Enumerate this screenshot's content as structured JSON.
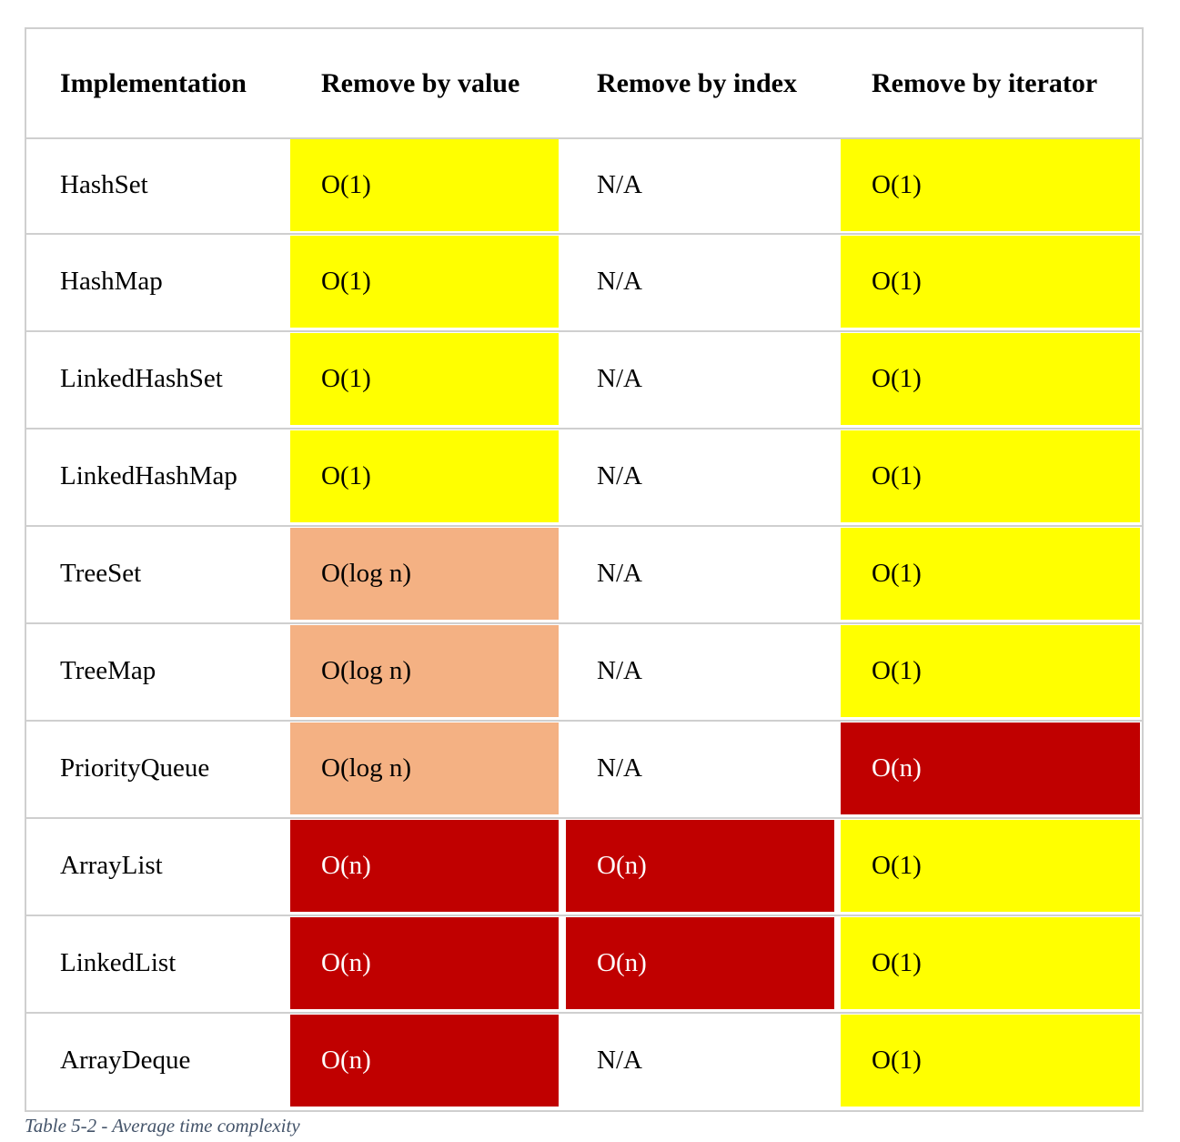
{
  "table": {
    "headers": [
      "Implementation",
      "Remove by value",
      "Remove by index",
      "Remove by iterator"
    ],
    "rows": [
      {
        "name": "HashSet",
        "value": "O(1)",
        "index": "N/A",
        "iterator": "O(1)"
      },
      {
        "name": "HashMap",
        "value": "O(1)",
        "index": "N/A",
        "iterator": "O(1)"
      },
      {
        "name": "LinkedHashSet",
        "value": "O(1)",
        "index": "N/A",
        "iterator": "O(1)"
      },
      {
        "name": "LinkedHashMap",
        "value": "O(1)",
        "index": "N/A",
        "iterator": "O(1)"
      },
      {
        "name": "TreeSet",
        "value": "O(log n)",
        "index": "N/A",
        "iterator": "O(1)"
      },
      {
        "name": "TreeMap",
        "value": "O(log n)",
        "index": "N/A",
        "iterator": "O(1)"
      },
      {
        "name": "PriorityQueue",
        "value": "O(log n)",
        "index": "N/A",
        "iterator": "O(n)"
      },
      {
        "name": "ArrayList",
        "value": "O(n)",
        "index": "O(n)",
        "iterator": "O(1)"
      },
      {
        "name": "LinkedList",
        "value": "O(n)",
        "index": "O(n)",
        "iterator": "O(1)"
      },
      {
        "name": "ArrayDeque",
        "value": "O(n)",
        "index": "N/A",
        "iterator": "O(1)"
      }
    ]
  },
  "colors": {
    "O(1)": "#ffff00",
    "O(log n)": "#f4b183",
    "O(n)": "#c00000",
    "N/A": "#ffffff",
    "border": "#cfcfcf",
    "caption": "#44546a"
  },
  "caption": "Table 5-2 - Average time complexity"
}
